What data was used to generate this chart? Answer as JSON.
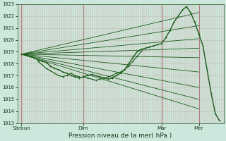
{
  "xlabel": "Pression niveau de la mer( hPa )",
  "ylim": [
    1013,
    1023
  ],
  "yticks": [
    1013,
    1014,
    1015,
    1016,
    1017,
    1018,
    1019,
    1020,
    1021,
    1022,
    1023
  ],
  "xlim": [
    0,
    100
  ],
  "xtick_positions": [
    2,
    32,
    70,
    88
  ],
  "xtick_labels": [
    "Sârbun",
    "Dim",
    "Mar",
    "Mer"
  ],
  "day_lines": [
    2,
    32,
    70,
    88
  ],
  "background_color": "#cce8dc",
  "grid_color_v": "#d4a0a0",
  "grid_color_h": "#c0c0b0",
  "line_color": "#1a5c1a",
  "fan_origin_x": 2,
  "fan_origin_y": 1018.8,
  "fan_endpoints": [
    [
      88,
      1022.3
    ],
    [
      88,
      1021.2
    ],
    [
      88,
      1020.1
    ],
    [
      88,
      1019.3
    ],
    [
      88,
      1018.5
    ],
    [
      88,
      1017.3
    ],
    [
      88,
      1016.0
    ],
    [
      88,
      1015.0
    ],
    [
      88,
      1014.2
    ]
  ],
  "main_line": {
    "x": [
      2,
      4,
      6,
      8,
      10,
      12,
      14,
      16,
      18,
      20,
      22,
      24,
      26,
      28,
      30,
      32,
      34,
      36,
      38,
      40,
      42,
      44,
      46,
      48,
      50,
      52,
      54,
      56,
      58,
      60,
      62,
      64,
      66,
      68,
      70,
      72,
      74,
      76,
      78,
      80,
      82,
      84,
      86,
      88,
      90,
      92,
      94,
      96,
      98
    ],
    "y": [
      1018.8,
      1018.7,
      1018.6,
      1018.5,
      1018.3,
      1018.2,
      1018.1,
      1017.8,
      1017.6,
      1017.5,
      1017.3,
      1017.2,
      1017.0,
      1016.9,
      1016.8,
      1016.9,
      1017.0,
      1017.1,
      1017.0,
      1016.9,
      1016.8,
      1016.7,
      1016.8,
      1017.0,
      1017.2,
      1017.5,
      1018.0,
      1018.5,
      1019.0,
      1019.2,
      1019.3,
      1019.4,
      1019.5,
      1019.6,
      1019.7,
      1020.2,
      1020.8,
      1021.5,
      1022.0,
      1022.5,
      1022.8,
      1022.3,
      1021.5,
      1020.5,
      1019.5,
      1017.5,
      1015.5,
      1013.8,
      1013.2
    ]
  },
  "extra_wiggles": [
    {
      "x": [
        10,
        12,
        14,
        16,
        18,
        20,
        22,
        24,
        26,
        28,
        30
      ],
      "y": [
        1018.2,
        1017.9,
        1017.6,
        1017.4,
        1017.2,
        1017.0,
        1016.9,
        1017.0,
        1017.2,
        1017.0,
        1016.9
      ]
    },
    {
      "x": [
        32,
        34,
        36,
        38,
        40,
        42,
        44,
        46,
        48,
        50,
        52,
        54,
        56,
        58,
        60
      ],
      "y": [
        1016.9,
        1016.8,
        1016.7,
        1016.6,
        1016.7,
        1016.8,
        1016.9,
        1017.0,
        1017.2,
        1017.3,
        1017.5,
        1017.8,
        1018.2,
        1018.6,
        1019.0
      ]
    }
  ]
}
